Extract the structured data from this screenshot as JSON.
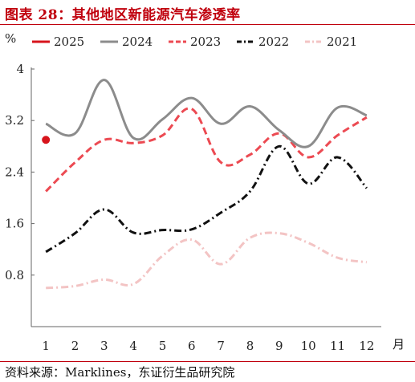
{
  "header": {
    "title": "图表 28：其他地区新能源汽车渗透率"
  },
  "footer": {
    "source": "资料来源：Marklines，东证衍生品研究院"
  },
  "chart_data": {
    "type": "line",
    "y_unit": "%",
    "x_unit": "月",
    "categories": [
      "1",
      "2",
      "3",
      "4",
      "5",
      "6",
      "7",
      "8",
      "9",
      "10",
      "11",
      "12"
    ],
    "ylim": [
      0,
      4
    ],
    "yticks": [
      "0.8",
      "1.6",
      "2.4",
      "3.2",
      "4"
    ],
    "legend_position": "top",
    "grid": false,
    "series": [
      {
        "name": "2025",
        "color": "#d7141c",
        "dash": "solid",
        "marker": "dot",
        "values": [
          2.9,
          null,
          null,
          null,
          null,
          null,
          null,
          null,
          null,
          null,
          null,
          null
        ]
      },
      {
        "name": "2024",
        "color": "#8c8c8c",
        "dash": "solid",
        "values": [
          3.15,
          3.0,
          3.83,
          2.93,
          3.22,
          3.55,
          3.15,
          3.42,
          3.05,
          2.8,
          3.4,
          3.28
        ]
      },
      {
        "name": "2023",
        "color": "#ec4a52",
        "dash": "dash",
        "values": [
          2.1,
          2.55,
          2.9,
          2.85,
          2.97,
          3.38,
          2.55,
          2.67,
          3.0,
          2.63,
          2.97,
          3.25
        ]
      },
      {
        "name": "2022",
        "color": "#111111",
        "dash": "dashdot",
        "values": [
          1.16,
          1.45,
          1.82,
          1.46,
          1.5,
          1.51,
          1.77,
          2.1,
          2.8,
          2.22,
          2.63,
          2.15
        ]
      },
      {
        "name": "2021",
        "color": "#f3c4c4",
        "dash": "dashdot",
        "values": [
          0.6,
          0.63,
          0.73,
          0.66,
          1.1,
          1.35,
          0.97,
          1.38,
          1.45,
          1.3,
          1.07,
          1.0
        ]
      }
    ]
  }
}
